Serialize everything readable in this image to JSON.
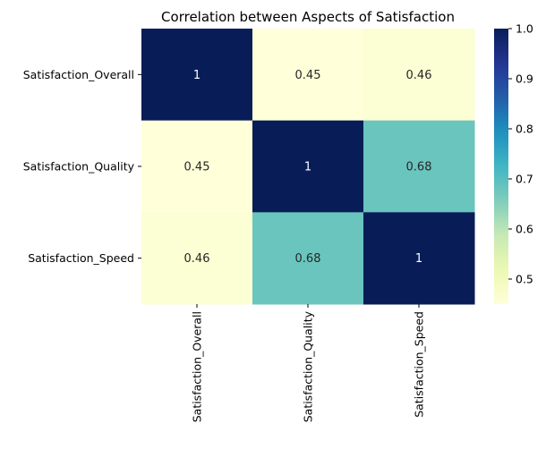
{
  "chart_data": {
    "type": "heatmap",
    "title": "Correlation between Aspects of Satisfaction",
    "x_labels": [
      "Satisfaction_Overall",
      "Satisfaction_Quality",
      "Satisfaction_Speed"
    ],
    "y_labels": [
      "Satisfaction_Overall",
      "Satisfaction_Quality",
      "Satisfaction_Speed"
    ],
    "values": [
      [
        1,
        0.45,
        0.46
      ],
      [
        0.45,
        1,
        0.68
      ],
      [
        0.46,
        0.68,
        1
      ]
    ],
    "annotations": [
      [
        "1",
        "0.45",
        "0.46"
      ],
      [
        "0.45",
        "1",
        "0.68"
      ],
      [
        "0.46",
        "0.68",
        "1"
      ]
    ],
    "colormap": "YlGnBu",
    "colorbar": {
      "vmin": 0.45,
      "vmax": 1.0,
      "ticks": [
        0.5,
        0.6,
        0.7,
        0.8,
        0.9,
        1.0
      ],
      "tick_labels": [
        "0.5",
        "0.6",
        "0.7",
        "0.8",
        "0.9",
        "1.0"
      ]
    },
    "xlabel": "",
    "ylabel": ""
  }
}
